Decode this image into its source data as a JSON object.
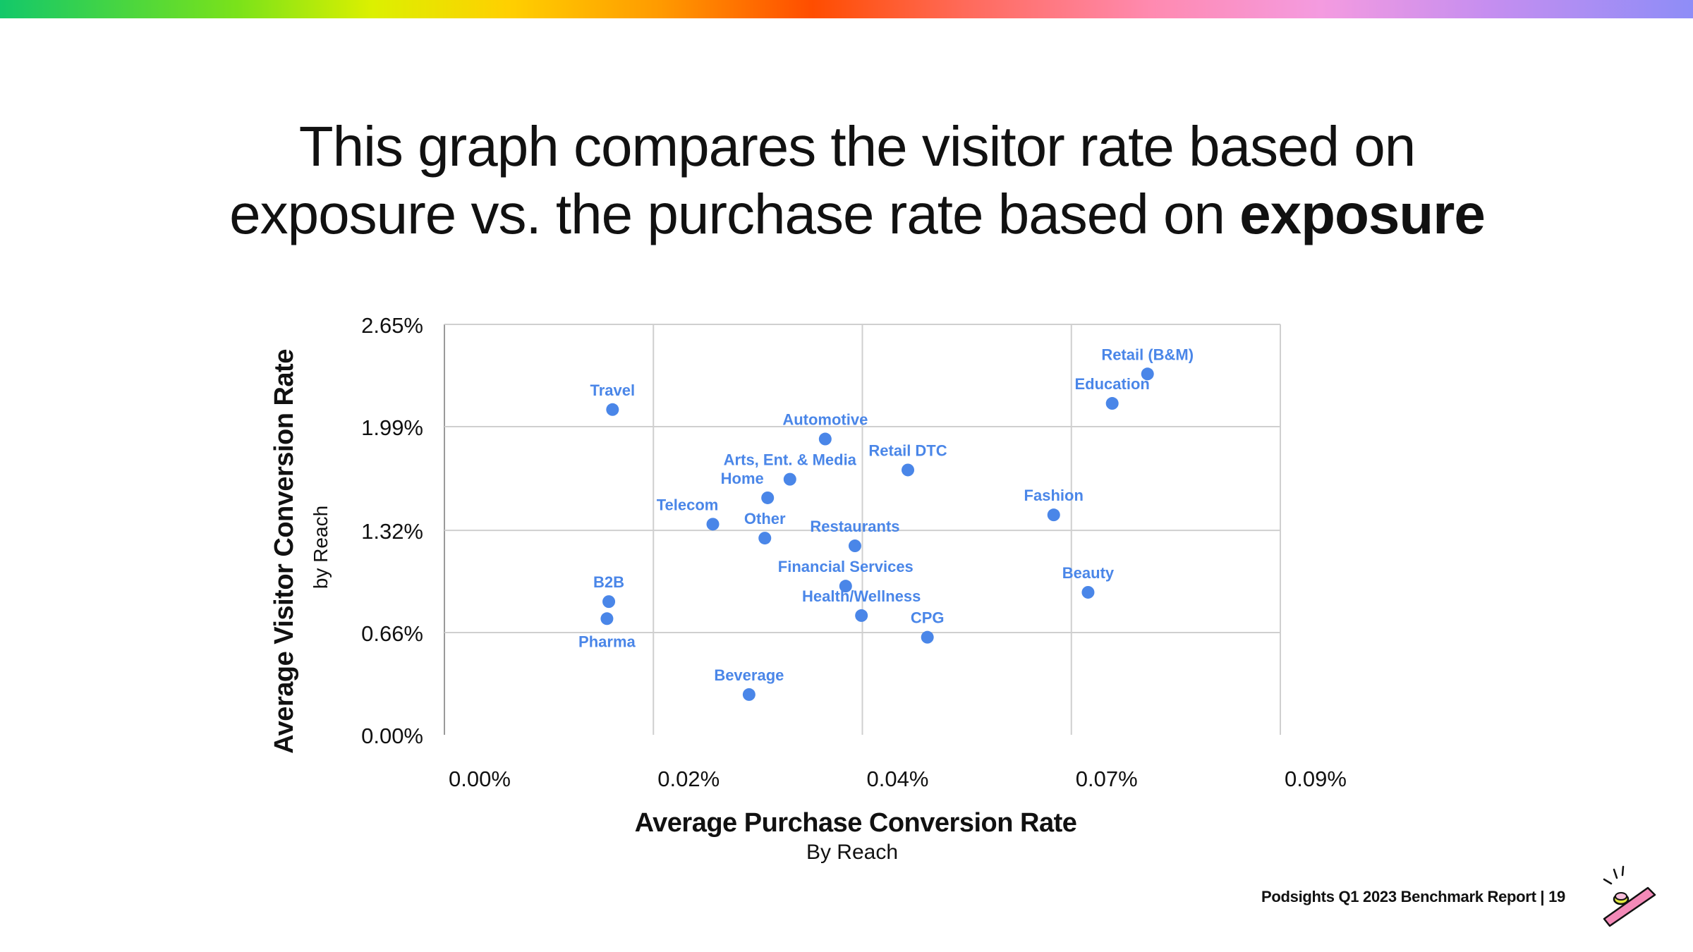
{
  "title": {
    "line1": "This graph compares the visitor rate based on",
    "line2_prefix": "exposure vs. the purchase rate based on ",
    "line2_bold": "exposure"
  },
  "chart_data": {
    "type": "scatter",
    "title": "",
    "xlabel": "Average Purchase Conversion Rate",
    "xsublabel": "By Reach",
    "ylabel": "Average Visitor Conversion Rate",
    "ysublabel": "by Reach",
    "xlim": [
      0,
      0.09
    ],
    "ylim": [
      0,
      2.65
    ],
    "x_ticks": [
      {
        "value": 0,
        "label": "0.00%"
      },
      {
        "value": 0.0225,
        "label": "0.02%"
      },
      {
        "value": 0.045,
        "label": "0.04%"
      },
      {
        "value": 0.0675,
        "label": "0.07%"
      },
      {
        "value": 0.09,
        "label": "0.09%"
      }
    ],
    "y_ticks": [
      {
        "value": 0,
        "label": "0.00%"
      },
      {
        "value": 0.66,
        "label": "0.66%"
      },
      {
        "value": 1.32,
        "label": "1.32%"
      },
      {
        "value": 1.99,
        "label": "1.99%"
      },
      {
        "value": 2.65,
        "label": "2.65%"
      }
    ],
    "grid": true,
    "point_color": "#4a86e8",
    "points": [
      {
        "label": "Travel",
        "x": 0.0181,
        "y": 2.1,
        "label_pos": "above"
      },
      {
        "label": "Automotive",
        "x": 0.041,
        "y": 1.91,
        "label_pos": "above"
      },
      {
        "label": "Retail DTC",
        "x": 0.0499,
        "y": 1.71,
        "label_pos": "above"
      },
      {
        "label": "Arts, Ent. & Media",
        "x": 0.0372,
        "y": 1.65,
        "label_pos": "above"
      },
      {
        "label": "Home",
        "x": 0.0348,
        "y": 1.53,
        "label_pos": "above-left"
      },
      {
        "label": "Telecom",
        "x": 0.0289,
        "y": 1.36,
        "label_pos": "above-left"
      },
      {
        "label": "Other",
        "x": 0.0345,
        "y": 1.27,
        "label_pos": "above"
      },
      {
        "label": "Restaurants",
        "x": 0.0442,
        "y": 1.22,
        "label_pos": "above"
      },
      {
        "label": "Financial Services",
        "x": 0.0432,
        "y": 0.96,
        "label_pos": "above"
      },
      {
        "label": "Health/Wellness",
        "x": 0.0449,
        "y": 0.77,
        "label_pos": "above"
      },
      {
        "label": "CPG",
        "x": 0.052,
        "y": 0.63,
        "label_pos": "above"
      },
      {
        "label": "B2B",
        "x": 0.0177,
        "y": 0.86,
        "label_pos": "above"
      },
      {
        "label": "Pharma",
        "x": 0.0175,
        "y": 0.75,
        "label_pos": "below"
      },
      {
        "label": "Beverage",
        "x": 0.0328,
        "y": 0.26,
        "label_pos": "above"
      },
      {
        "label": "Retail (B&M)",
        "x": 0.0757,
        "y": 2.33,
        "label_pos": "above"
      },
      {
        "label": "Education",
        "x": 0.0719,
        "y": 2.14,
        "label_pos": "above"
      },
      {
        "label": "Fashion",
        "x": 0.0656,
        "y": 1.42,
        "label_pos": "above"
      },
      {
        "label": "Beauty",
        "x": 0.0693,
        "y": 0.92,
        "label_pos": "above"
      }
    ]
  },
  "footer": {
    "text": "Podsights Q1 2023 Benchmark Report | 19"
  },
  "icons": {
    "logo": "sparkle-stick-icon"
  }
}
